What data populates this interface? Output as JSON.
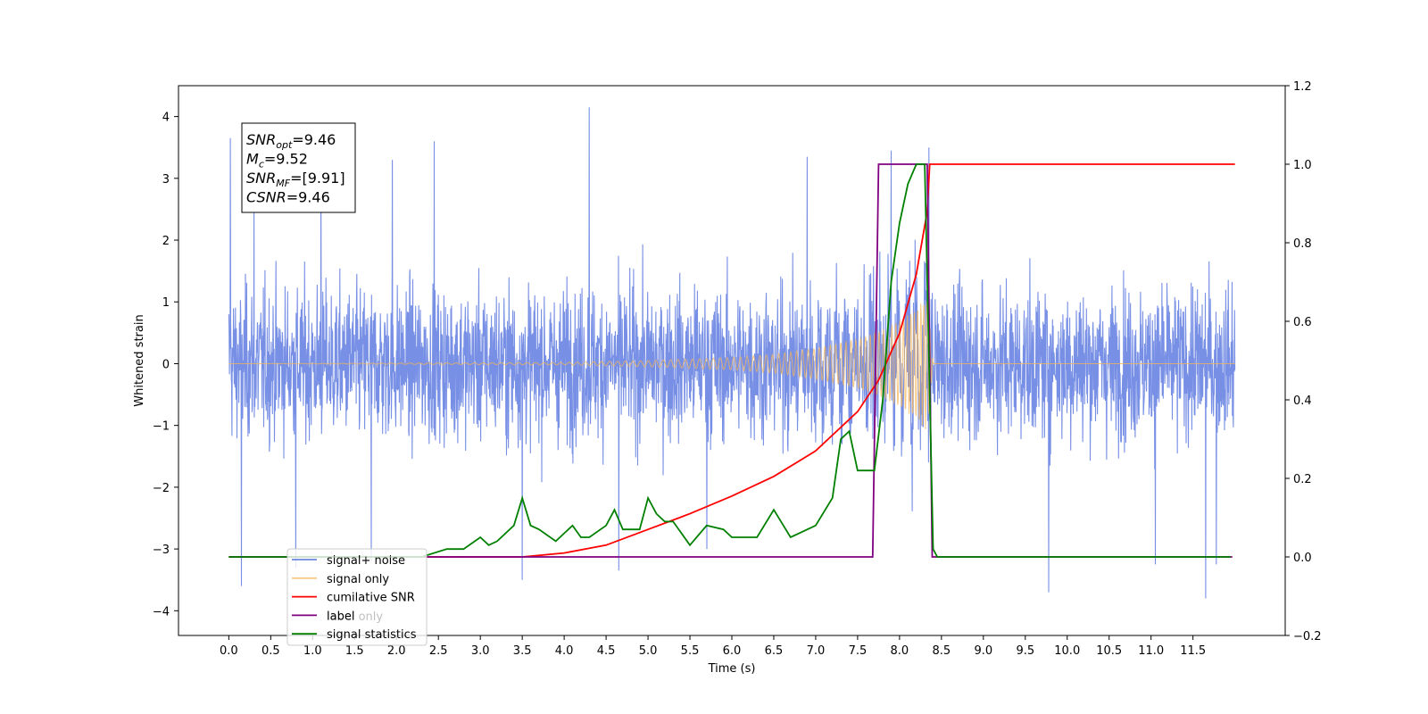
{
  "chart_data": {
    "type": "line",
    "xlabel": "Time (s)",
    "ylabel": "Whitened strain",
    "xlim": [
      -0.6,
      12.6
    ],
    "ylim": [
      -4.4,
      4.5
    ],
    "y2lim": [
      -0.2,
      1.2
    ],
    "x_ticks": [
      0.0,
      0.5,
      1.0,
      1.5,
      2.0,
      2.5,
      3.0,
      3.5,
      4.0,
      4.5,
      5.0,
      5.5,
      6.0,
      6.5,
      7.0,
      7.5,
      8.0,
      8.5,
      9.0,
      9.5,
      10.0,
      10.5,
      11.0,
      11.5
    ],
    "x_tick_labels": [
      "0.0",
      "0.5",
      "1.0",
      "1.5",
      "2.0",
      "2.5",
      "3.0",
      "3.5",
      "4.0",
      "4.5",
      "5.0",
      "5.5",
      "6.0",
      "6.5",
      "7.0",
      "7.5",
      "8.0",
      "8.5",
      "9.0",
      "9.5",
      "10.0",
      "10.5",
      "11.0",
      "11.5"
    ],
    "y_ticks": [
      -4,
      -3,
      -2,
      -1,
      0,
      1,
      2,
      3,
      4
    ],
    "y_tick_labels": [
      "−4",
      "−3",
      "−2",
      "−1",
      "0",
      "1",
      "2",
      "3",
      "4"
    ],
    "y2_ticks": [
      -0.2,
      0.0,
      0.2,
      0.4,
      0.6,
      0.8,
      1.0,
      1.2
    ],
    "y2_tick_labels": [
      "−0.2",
      "0.0",
      "0.2",
      "0.4",
      "0.6",
      "0.8",
      "1.0",
      "1.2"
    ],
    "grid": false,
    "legend_position": "bottom-left",
    "series": [
      {
        "name": "signal+ noise",
        "axis": "left",
        "color": "#6b86e3",
        "kind": "noise",
        "x_range": [
          0.0,
          12.0
        ],
        "typical_min": -1.6,
        "typical_max": 1.6,
        "spikes": [
          {
            "x": 0.02,
            "y": 3.65
          },
          {
            "x": 0.15,
            "y": -3.6
          },
          {
            "x": 0.3,
            "y": 2.6
          },
          {
            "x": 0.8,
            "y": -3.3
          },
          {
            "x": 1.1,
            "y": 3.0
          },
          {
            "x": 1.7,
            "y": -3.2
          },
          {
            "x": 1.95,
            "y": 3.3
          },
          {
            "x": 2.45,
            "y": 3.6
          },
          {
            "x": 3.5,
            "y": -3.5
          },
          {
            "x": 4.3,
            "y": 4.15
          },
          {
            "x": 4.65,
            "y": -3.35
          },
          {
            "x": 5.7,
            "y": -3.0
          },
          {
            "x": 6.9,
            "y": 3.35
          },
          {
            "x": 7.9,
            "y": 3.45
          },
          {
            "x": 8.35,
            "y": 3.5
          },
          {
            "x": 9.78,
            "y": -3.7
          },
          {
            "x": 11.05,
            "y": -3.25
          },
          {
            "x": 11.65,
            "y": -3.8
          },
          {
            "x": 11.78,
            "y": -3.25
          }
        ]
      },
      {
        "name": "signal only",
        "axis": "left",
        "color": "#f5b655",
        "kind": "chirp",
        "x": [
          0.0,
          4.0,
          5.0,
          6.0,
          6.5,
          7.0,
          7.5,
          7.8,
          8.0,
          8.2,
          8.3,
          8.33,
          8.4,
          12.0
        ],
        "envelope": [
          0.0,
          0.02,
          0.05,
          0.1,
          0.15,
          0.25,
          0.4,
          0.55,
          0.7,
          0.9,
          1.05,
          1.1,
          0.0,
          0.0
        ]
      },
      {
        "name": "cumilative SNR",
        "axis": "right",
        "color": "#ff0000",
        "x": [
          0.0,
          3.5,
          4.0,
          4.5,
          5.0,
          5.5,
          6.0,
          6.5,
          7.0,
          7.5,
          7.75,
          8.0,
          8.2,
          8.33,
          8.36,
          12.0
        ],
        "values": [
          0.0,
          0.0,
          0.01,
          0.03,
          0.07,
          0.11,
          0.155,
          0.205,
          0.27,
          0.37,
          0.45,
          0.57,
          0.72,
          0.88,
          1.0,
          1.0
        ]
      },
      {
        "name": "label",
        "axis": "right",
        "color": "#800080",
        "x": [
          0.0,
          7.68,
          7.75,
          8.33,
          8.36,
          8.39,
          11.97
        ],
        "values": [
          0.0,
          0.0,
          1.0,
          1.0,
          0.5,
          0.0,
          0.0
        ]
      },
      {
        "name": "signal statistics",
        "axis": "right",
        "color": "#008000",
        "x": [
          0.0,
          2.3,
          2.6,
          2.8,
          3.0,
          3.1,
          3.2,
          3.4,
          3.5,
          3.6,
          3.7,
          3.9,
          4.1,
          4.2,
          4.3,
          4.5,
          4.6,
          4.7,
          4.9,
          5.0,
          5.1,
          5.2,
          5.3,
          5.5,
          5.7,
          5.9,
          6.0,
          6.3,
          6.5,
          6.7,
          7.0,
          7.2,
          7.3,
          7.4,
          7.5,
          7.6,
          7.7,
          7.8,
          7.9,
          8.0,
          8.1,
          8.2,
          8.3,
          8.4,
          8.45,
          11.95
        ],
        "values": [
          0.0,
          0.0,
          0.02,
          0.02,
          0.05,
          0.03,
          0.04,
          0.08,
          0.15,
          0.08,
          0.07,
          0.04,
          0.08,
          0.05,
          0.05,
          0.08,
          0.12,
          0.07,
          0.07,
          0.15,
          0.11,
          0.09,
          0.09,
          0.03,
          0.08,
          0.07,
          0.05,
          0.05,
          0.12,
          0.05,
          0.08,
          0.15,
          0.3,
          0.32,
          0.22,
          0.22,
          0.22,
          0.4,
          0.7,
          0.85,
          0.95,
          1.0,
          1.0,
          0.02,
          0.0,
          0.0
        ]
      }
    ],
    "legend": [
      "signal+ noise",
      "signal only",
      "cumilative SNR",
      "label",
      "signal statistics"
    ],
    "legend_ghost_text": [
      "label only"
    ]
  },
  "annotation": {
    "lines": [
      {
        "name": "SNR",
        "sub": "opt",
        "value": "=9.46"
      },
      {
        "name": "M",
        "sub": "c",
        "value": "=9.52"
      },
      {
        "name": "SNR",
        "sub": "MF",
        "value": "=[9.91]"
      },
      {
        "name": "CSNR",
        "sub": "",
        "value": "=9.46"
      }
    ]
  }
}
